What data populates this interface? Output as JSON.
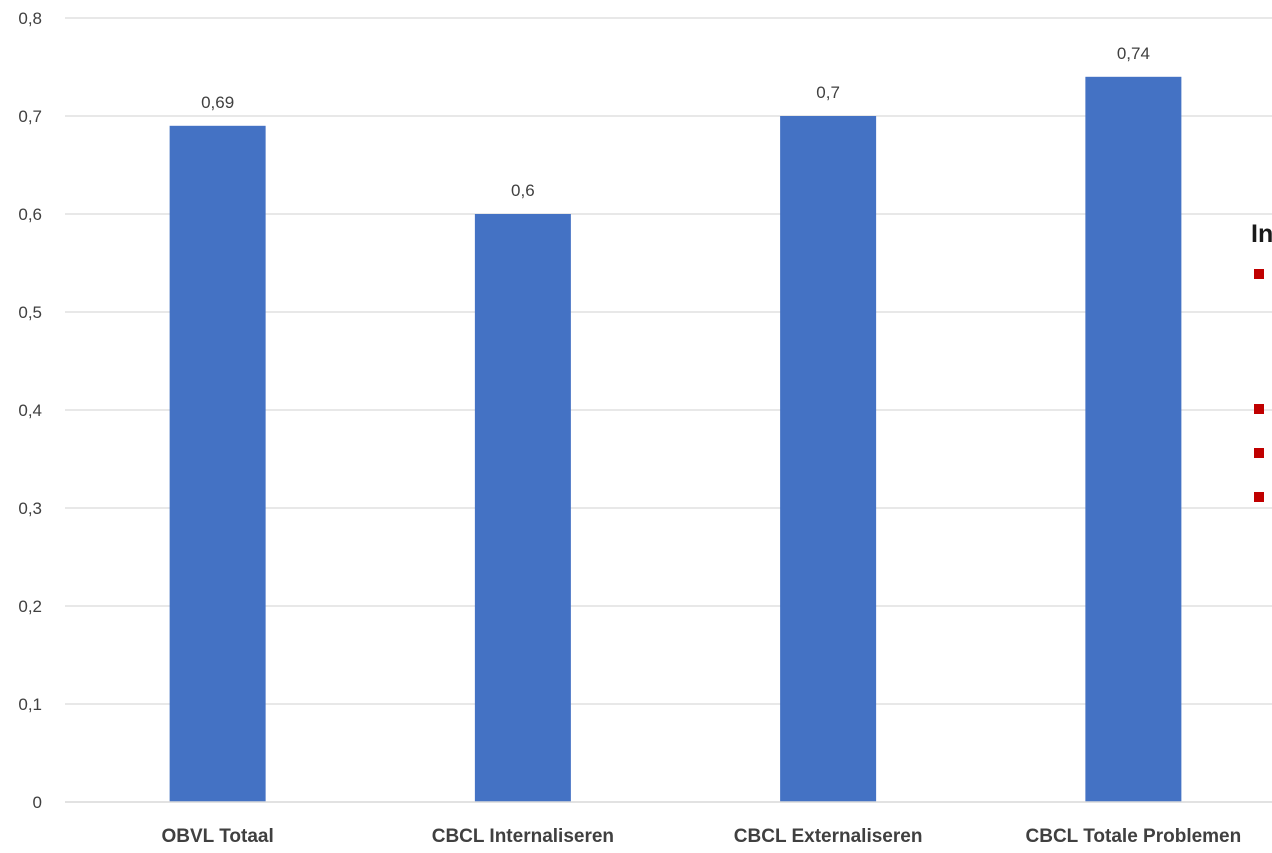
{
  "chart_data": {
    "type": "bar",
    "categories": [
      "OBVL Totaal",
      "CBCL Internaliseren",
      "CBCL Externaliseren",
      "CBCL Totale Problemen"
    ],
    "values": [
      0.69,
      0.6,
      0.7,
      0.74
    ],
    "value_labels": [
      "0,69",
      "0,6",
      "0,7",
      "0,74"
    ],
    "ylim": [
      0,
      0.8
    ],
    "yticks": [
      0,
      0.1,
      0.2,
      0.3,
      0.4,
      0.5,
      0.6,
      0.7,
      0.8
    ],
    "ytick_labels": [
      "0",
      "0,1",
      "0,2",
      "0,3",
      "0,4",
      "0,5",
      "0,6",
      "0,7",
      "0,8"
    ],
    "grid": true,
    "title": "",
    "xlabel": "",
    "ylabel": "",
    "bar_color": "#4472C4",
    "grid_color": "#D9D9D9"
  },
  "side_panel": {
    "title_fragment": "In",
    "bullet_color": "#C00000",
    "bullet_count": 4
  }
}
